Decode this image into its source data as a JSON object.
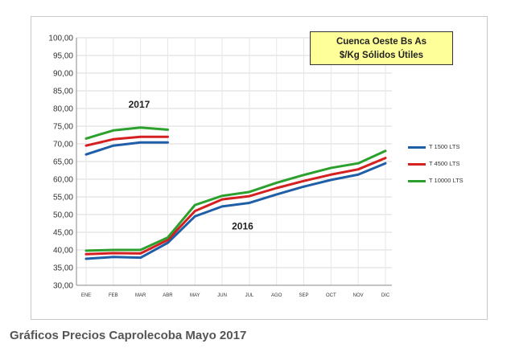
{
  "caption": "Gráficos Precios Caprolecoba Mayo 2017",
  "chart_data": {
    "type": "line",
    "title_lines": [
      "Cuenca Oeste Bs As",
      "$/Kg Sólidos Útiles"
    ],
    "categories": [
      "ENE",
      "FEB",
      "MAR",
      "ABR",
      "MAY",
      "JUN",
      "JUL",
      "AGO",
      "SEP",
      "OCT",
      "NOV",
      "DIC"
    ],
    "ylim": [
      30,
      100
    ],
    "yticks": [
      "30,00",
      "35,00",
      "40,00",
      "45,00",
      "50,00",
      "55,00",
      "60,00",
      "65,00",
      "70,00",
      "75,00",
      "80,00",
      "85,00",
      "90,00",
      "95,00",
      "100,00"
    ],
    "grid": true,
    "legend_position": "right",
    "annotations": {
      "year_2017": "2017",
      "year_2016": "2016"
    },
    "series": [
      {
        "name": "T 1500 LTS",
        "color": "#1f5fa8",
        "values_2016": [
          37.5,
          38.0,
          37.8,
          42.0,
          49.5,
          52.3,
          53.3,
          55.7,
          57.9,
          59.8,
          61.3,
          64.5
        ],
        "values_2017": [
          67.0,
          69.5,
          70.4,
          70.4
        ]
      },
      {
        "name": "T 4500 LTS",
        "color": "#d42020",
        "values_2016": [
          38.8,
          39.1,
          39.0,
          42.8,
          51.0,
          54.3,
          55.2,
          57.5,
          59.5,
          61.3,
          62.8,
          66.0
        ],
        "values_2017": [
          69.5,
          71.3,
          72.0,
          72.0
        ]
      },
      {
        "name": "T 10000 LTS",
        "color": "#2ca02c",
        "values_2016": [
          39.8,
          40.0,
          40.0,
          43.5,
          52.7,
          55.3,
          56.4,
          59.0,
          61.2,
          63.2,
          64.5,
          68.0
        ],
        "values_2017": [
          71.5,
          73.8,
          74.6,
          74.0
        ]
      }
    ]
  }
}
